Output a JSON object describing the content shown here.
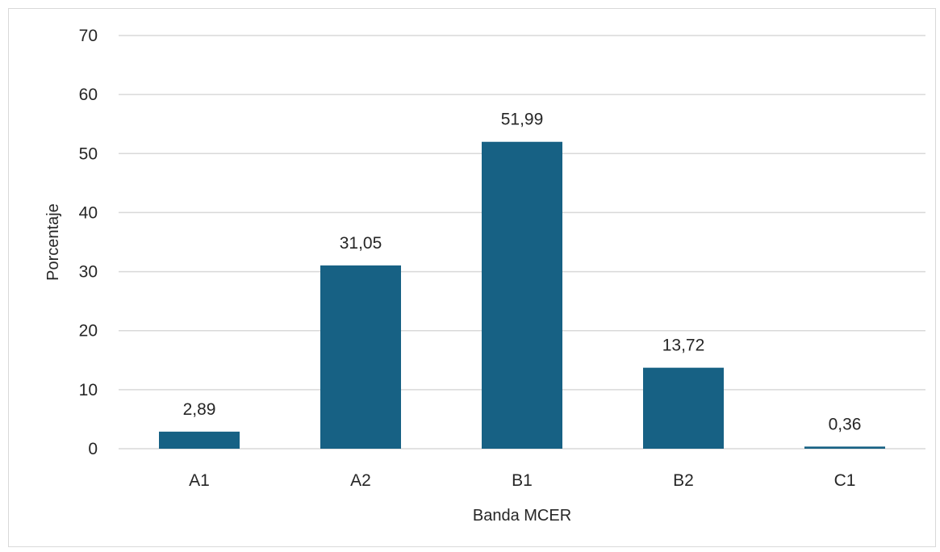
{
  "chart_data": {
    "type": "bar",
    "title": "",
    "xlabel": "Banda MCER",
    "ylabel": "Porcentaje",
    "categories": [
      "A1",
      "A2",
      "B1",
      "B2",
      "C1"
    ],
    "values": [
      2.89,
      31.05,
      51.99,
      13.72,
      0.36
    ],
    "data_labels": [
      "2,89",
      "31,05",
      "51,99",
      "13,72",
      "0,36"
    ],
    "ylim": [
      0,
      70
    ],
    "yticks": [
      0,
      10,
      20,
      30,
      40,
      50,
      60,
      70
    ],
    "ytick_labels": [
      "0",
      "10",
      "20",
      "30",
      "40",
      "50",
      "60",
      "70"
    ],
    "grid": true,
    "legend": "none",
    "bar_color": "#176184",
    "grid_color": "#d9d9d9"
  }
}
